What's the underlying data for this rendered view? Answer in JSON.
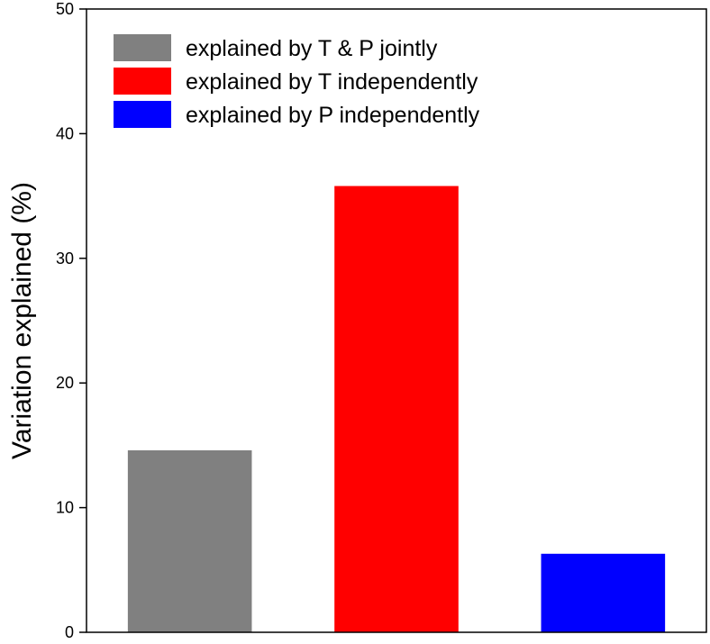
{
  "chart_data": {
    "type": "bar",
    "categories": [
      "",
      "",
      ""
    ],
    "values": [
      14.6,
      35.8,
      6.3
    ],
    "colors": [
      "#808080",
      "#ff0000",
      "#0000ff"
    ],
    "title": "",
    "xlabel": "",
    "ylabel": "Variation explained (%)",
    "ylim": [
      0,
      50
    ],
    "yticks": [
      0,
      10,
      20,
      30,
      40,
      50
    ],
    "grid": false,
    "legend": {
      "placement": "top-left",
      "entries": [
        {
          "label": "explained by T & P jointly",
          "color": "#808080"
        },
        {
          "label": "explained by T independently",
          "color": "#ff0000"
        },
        {
          "label": "explained by P independently",
          "color": "#0000ff"
        }
      ]
    }
  }
}
